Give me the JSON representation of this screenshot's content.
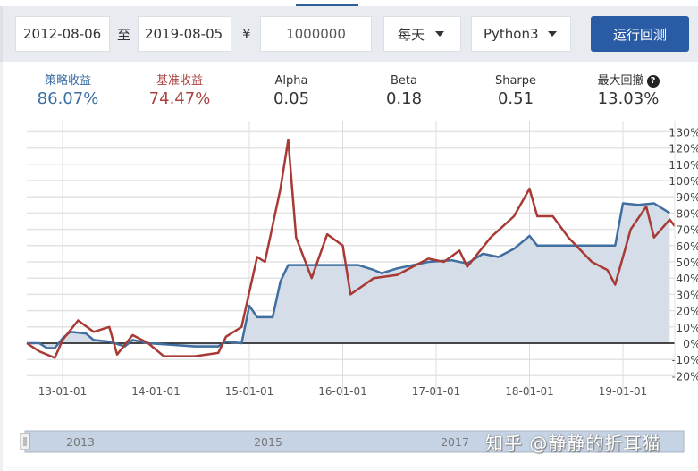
{
  "toolbar": {
    "start_date": "2012-08-06",
    "to_label": "至",
    "end_date": "2019-08-05",
    "currency_symbol": "¥",
    "capital": "1000000",
    "frequency": "每天",
    "language": "Python3",
    "run_button": "运行回测"
  },
  "stats": [
    {
      "label": "策略收益",
      "value": "86.07%",
      "color": "#3a6ea5"
    },
    {
      "label": "基准收益",
      "value": "74.47%",
      "color": "#a94442"
    },
    {
      "label": "Alpha",
      "value": "0.05",
      "color": "#333333"
    },
    {
      "label": "Beta",
      "value": "0.18",
      "color": "#333333"
    },
    {
      "label": "Sharpe",
      "value": "0.51",
      "color": "#333333"
    },
    {
      "label": "最大回撤",
      "value": "13.03%",
      "color": "#333333"
    }
  ],
  "watermark": "知乎 @静静的折耳猫",
  "chart_data": {
    "type": "line",
    "title": "",
    "xlabel": "",
    "ylabel": "",
    "ylim": [
      -20,
      130
    ],
    "y_ticks": [
      "130%",
      "120%",
      "110%",
      "100%",
      "90%",
      "80%",
      "70%",
      "60%",
      "50%",
      "40%",
      "30%",
      "20%",
      "10%",
      "0%",
      "-10%",
      "-20%"
    ],
    "x_ticks": [
      "13-01-01",
      "14-01-01",
      "15-01-01",
      "16-01-01",
      "17-01-01",
      "18-01-01",
      "19-01-01"
    ],
    "navigator_labels": [
      "2013",
      "2015",
      "2017"
    ],
    "grid": true,
    "series": [
      {
        "name": "策略收益",
        "color": "#3f6e9f",
        "area": true,
        "points": [
          [
            "2012-08",
            0
          ],
          [
            "2012-10",
            0
          ],
          [
            "2012-11",
            -3
          ],
          [
            "2012-12",
            -3
          ],
          [
            "2013-01",
            3
          ],
          [
            "2013-02",
            7
          ],
          [
            "2013-04",
            6
          ],
          [
            "2013-05",
            2
          ],
          [
            "2013-07",
            1
          ],
          [
            "2013-09",
            -2
          ],
          [
            "2013-10",
            2
          ],
          [
            "2013-12",
            0
          ],
          [
            "2014-06",
            -2
          ],
          [
            "2014-09",
            -2
          ],
          [
            "2014-10",
            1
          ],
          [
            "2014-12",
            0
          ],
          [
            "2015-01",
            23
          ],
          [
            "2015-02",
            16
          ],
          [
            "2015-04",
            16
          ],
          [
            "2015-05",
            38
          ],
          [
            "2015-06",
            48
          ],
          [
            "2015-07",
            48
          ],
          [
            "2016-01",
            48
          ],
          [
            "2016-03",
            48
          ],
          [
            "2016-05",
            45
          ],
          [
            "2016-06",
            43
          ],
          [
            "2016-08",
            46
          ],
          [
            "2016-12",
            50
          ],
          [
            "2017-03",
            51
          ],
          [
            "2017-05",
            49
          ],
          [
            "2017-07",
            55
          ],
          [
            "2017-09",
            53
          ],
          [
            "2017-11",
            58
          ],
          [
            "2018-01",
            66
          ],
          [
            "2018-02",
            60
          ],
          [
            "2018-12",
            60
          ],
          [
            "2019-01",
            86
          ],
          [
            "2019-03",
            85
          ],
          [
            "2019-05",
            86
          ],
          [
            "2019-07",
            80
          ]
        ]
      },
      {
        "name": "基准收益",
        "color": "#a83a35",
        "area": false,
        "points": [
          [
            "2012-08",
            0
          ],
          [
            "2012-10",
            -5
          ],
          [
            "2012-12",
            -9
          ],
          [
            "2013-01",
            2
          ],
          [
            "2013-03",
            14
          ],
          [
            "2013-05",
            7
          ],
          [
            "2013-07",
            10
          ],
          [
            "2013-08",
            -7
          ],
          [
            "2013-10",
            5
          ],
          [
            "2013-12",
            0
          ],
          [
            "2014-02",
            -8
          ],
          [
            "2014-06",
            -8
          ],
          [
            "2014-09",
            -6
          ],
          [
            "2014-10",
            4
          ],
          [
            "2014-12",
            10
          ],
          [
            "2015-02",
            53
          ],
          [
            "2015-03",
            50
          ],
          [
            "2015-05",
            95
          ],
          [
            "2015-06",
            125
          ],
          [
            "2015-07",
            65
          ],
          [
            "2015-09",
            40
          ],
          [
            "2015-11",
            67
          ],
          [
            "2016-01",
            60
          ],
          [
            "2016-02",
            30
          ],
          [
            "2016-05",
            40
          ],
          [
            "2016-08",
            42
          ],
          [
            "2016-12",
            52
          ],
          [
            "2017-02",
            50
          ],
          [
            "2017-04",
            57
          ],
          [
            "2017-05",
            47
          ],
          [
            "2017-08",
            65
          ],
          [
            "2017-11",
            78
          ],
          [
            "2018-01",
            95
          ],
          [
            "2018-02",
            78
          ],
          [
            "2018-04",
            78
          ],
          [
            "2018-06",
            65
          ],
          [
            "2018-09",
            50
          ],
          [
            "2018-11",
            45
          ],
          [
            "2018-12",
            36
          ],
          [
            "2019-02",
            70
          ],
          [
            "2019-04",
            84
          ],
          [
            "2019-05",
            65
          ],
          [
            "2019-07",
            76
          ],
          [
            "2019-08",
            72
          ]
        ]
      }
    ]
  }
}
